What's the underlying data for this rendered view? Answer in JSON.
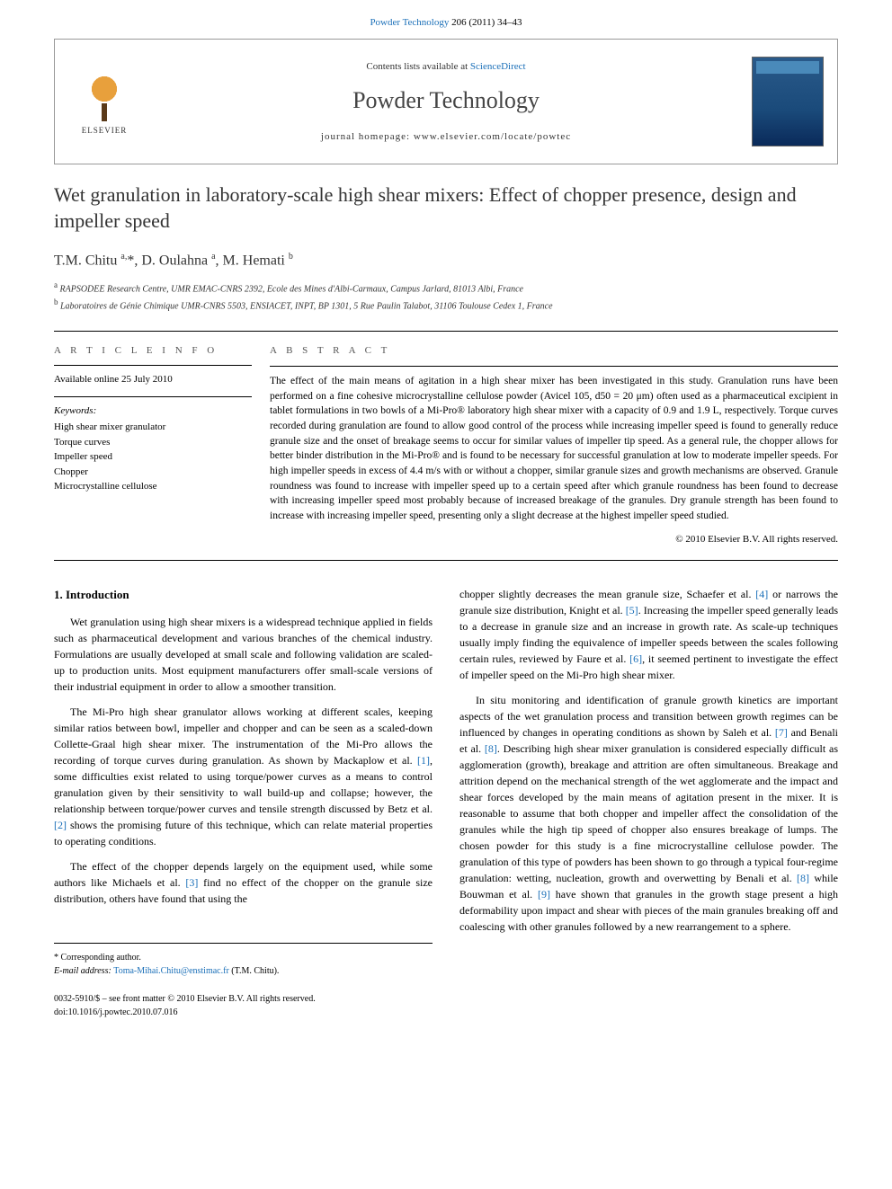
{
  "top_link": {
    "journal": "Powder Technology",
    "citation": "206 (2011) 34–43"
  },
  "header": {
    "contents_prefix": "Contents lists available at ",
    "contents_link": "ScienceDirect",
    "journal_name": "Powder Technology",
    "homepage_prefix": "journal homepage: ",
    "homepage_url": "www.elsevier.com/locate/powtec",
    "elsevier_label": "ELSEVIER",
    "cover_label": "POWDER TECHNOLOGY"
  },
  "article": {
    "title": "Wet granulation in laboratory-scale high shear mixers: Effect of chopper presence, design and impeller speed",
    "authors_html": "T.M. Chitu <sup>a,</sup><span class='star'>*</span>, D. Oulahna <sup>a</sup>, M. Hemati <sup>b</sup>",
    "affiliations": [
      {
        "sup": "a",
        "text": "RAPSODEE Research Centre, UMR EMAC-CNRS 2392, Ecole des Mines d'Albi-Carmaux, Campus Jarlard, 81013 Albi, France"
      },
      {
        "sup": "b",
        "text": "Laboratoires de Génie Chimique UMR-CNRS 5503, ENSIACET, INPT, BP 1301, 5 Rue Paulin Talabot, 31106 Toulouse Cedex 1, France"
      }
    ]
  },
  "meta": {
    "info_heading": "A R T I C L E   I N F O",
    "available": "Available online 25 July 2010",
    "keywords_label": "Keywords:",
    "keywords": [
      "High shear mixer granulator",
      "Torque curves",
      "Impeller speed",
      "Chopper",
      "Microcrystalline cellulose"
    ]
  },
  "abstract": {
    "heading": "A B S T R A C T",
    "text": "The effect of the main means of agitation in a high shear mixer has been investigated in this study. Granulation runs have been performed on a fine cohesive microcrystalline cellulose powder (Avicel 105, d50 = 20 μm) often used as a pharmaceutical excipient in tablet formulations in two bowls of a Mi-Pro® laboratory high shear mixer with a capacity of 0.9 and 1.9 L, respectively. Torque curves recorded during granulation are found to allow good control of the process while increasing impeller speed is found to generally reduce granule size and the onset of breakage seems to occur for similar values of impeller tip speed. As a general rule, the chopper allows for better binder distribution in the Mi-Pro® and is found to be necessary for successful granulation at low to moderate impeller speeds. For high impeller speeds in excess of 4.4 m/s with or without a chopper, similar granule sizes and growth mechanisms are observed. Granule roundness was found to increase with impeller speed up to a certain speed after which granule roundness has been found to decrease with increasing impeller speed most probably because of increased breakage of the granules. Dry granule strength has been found to increase with increasing impeller speed, presenting only a slight decrease at the highest impeller speed studied.",
    "copyright": "© 2010 Elsevier B.V. All rights reserved."
  },
  "body": {
    "section_heading": "1. Introduction",
    "left_paragraphs": [
      "Wet granulation using high shear mixers is a widespread technique applied in fields such as pharmaceutical development and various branches of the chemical industry. Formulations are usually developed at small scale and following validation are scaled-up to production units. Most equipment manufacturers offer small-scale versions of their industrial equipment in order to allow a smoother transition.",
      "The Mi-Pro high shear granulator allows working at different scales, keeping similar ratios between bowl, impeller and chopper and can be seen as a scaled-down Collette-Graal high shear mixer. The instrumentation of the Mi-Pro allows the recording of torque curves during granulation. As shown by Mackaplow et al. [1], some difficulties exist related to using torque/power curves as a means to control granulation given by their sensitivity to wall build-up and collapse; however, the relationship between torque/power curves and tensile strength discussed by Betz et al. [2] shows the promising future of this technique, which can relate material properties to operating conditions.",
      "The effect of the chopper depends largely on the equipment used, while some authors like Michaels et al. [3] find no effect of the chopper on the granule size distribution, others have found that using the"
    ],
    "right_paragraphs": [
      "chopper slightly decreases the mean granule size, Schaefer et al. [4] or narrows the granule size distribution, Knight et al. [5]. Increasing the impeller speed generally leads to a decrease in granule size and an increase in growth rate. As scale-up techniques usually imply finding the equivalence of impeller speeds between the scales following certain rules, reviewed by Faure et al. [6], it seemed pertinent to investigate the effect of impeller speed on the Mi-Pro high shear mixer.",
      "In situ monitoring and identification of granule growth kinetics are important aspects of the wet granulation process and transition between growth regimes can be influenced by changes in operating conditions as shown by Saleh et al. [7] and Benali et al. [8]. Describing high shear mixer granulation is considered especially difficult as agglomeration (growth), breakage and attrition are often simultaneous. Breakage and attrition depend on the mechanical strength of the wet agglomerate and the impact and shear forces developed by the main means of agitation present in the mixer. It is reasonable to assume that both chopper and impeller affect the consolidation of the granules while the high tip speed of chopper also ensures breakage of lumps. The chosen powder for this study is a fine microcrystalline cellulose powder. The granulation of this type of powders has been shown to go through a typical four-regime granulation: wetting, nucleation, growth and overwetting by Benali et al. [8] while Bouwman et al. [9] have shown that granules in the growth stage present a high deformability upon impact and shear with pieces of the main granules breaking off and coalescing with other granules followed by a new rearrangement to a sphere."
    ]
  },
  "refs": {
    "r1": "[1]",
    "r2": "[2]",
    "r3": "[3]",
    "r4": "[4]",
    "r5": "[5]",
    "r6": "[6]",
    "r7": "[7]",
    "r8": "[8]",
    "r9": "[9]"
  },
  "footer": {
    "corresponding": "* Corresponding author.",
    "email_label": "E-mail address: ",
    "email": "Toma-Mihai.Chitu@enstimac.fr",
    "email_suffix": " (T.M. Chitu).",
    "front_matter": "0032-5910/$ – see front matter © 2010 Elsevier B.V. All rights reserved.",
    "doi_label": "doi:",
    "doi": "10.1016/j.powtec.2010.07.016"
  },
  "colors": {
    "link": "#1a6fb8",
    "text": "#000000",
    "rule": "#000000"
  }
}
